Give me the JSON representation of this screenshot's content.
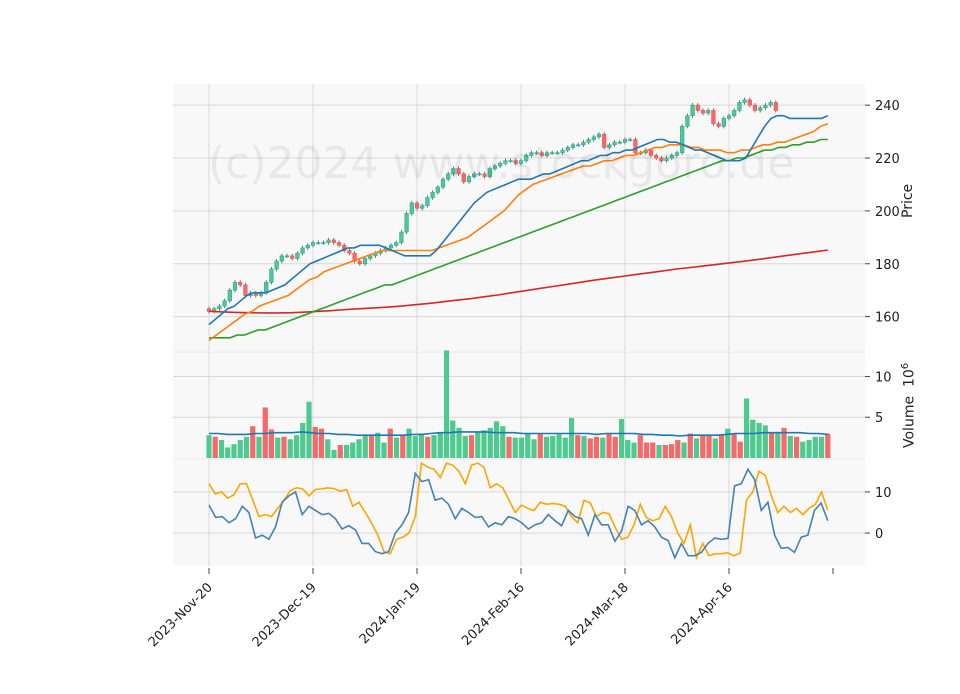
{
  "watermark": "(c)2024 www.stockgoro.de",
  "labels": {
    "price_axis": "Price",
    "volume_axis": "Volume",
    "volume_exp_base": "10",
    "volume_exp": "6"
  },
  "colors": {
    "up": "#26a69a",
    "up_fill": "#4ec98f",
    "down": "#ef5350",
    "down_fill": "#f46a6a",
    "ma_short": "#1f77b4",
    "ma_mid": "#ff7f0e",
    "ma_long": "#2ca02c",
    "ma_200": "#d62728",
    "vol_ma": "#1f77b4",
    "osc_a": "#ffa500",
    "osc_b": "#4682b4",
    "panel_bg": "#f8f8f8",
    "grid": "#d8d8d8"
  },
  "chart_data": [
    {
      "type": "candlestick",
      "panel": "price",
      "ylabel": "Price",
      "ylim": [
        147,
        248
      ],
      "yticks": [
        160,
        180,
        200,
        220,
        240
      ],
      "x_tick_labels": [
        "2023-Nov-20",
        "2023-Dec-19",
        "2024-Jan-19",
        "2024-Feb-16",
        "2024-Mar-18",
        "2024-Apr-16"
      ],
      "x_tick_index": [
        0,
        20,
        40,
        60,
        80,
        100
      ],
      "closes": [
        163,
        162,
        163,
        164,
        166,
        170,
        173,
        172,
        168,
        169,
        168,
        169,
        173,
        178,
        181,
        183,
        183,
        182,
        184,
        186,
        187,
        188,
        188,
        188,
        189,
        188,
        187,
        185,
        184,
        181,
        180,
        182,
        183,
        184,
        185,
        186,
        187,
        188,
        192,
        199,
        203,
        201,
        202,
        205,
        207,
        209,
        212,
        214,
        216,
        214,
        211,
        213,
        214,
        214,
        213,
        216,
        217,
        218,
        219,
        219,
        218,
        219,
        221,
        222,
        222,
        221,
        222,
        222,
        222,
        223,
        224,
        225,
        225,
        226,
        227,
        228,
        229,
        224,
        225,
        226,
        226,
        227,
        227,
        222,
        222,
        223,
        221,
        220,
        219,
        220,
        221,
        222,
        232,
        236,
        240,
        238,
        237,
        238,
        233,
        232,
        235,
        236,
        238,
        241,
        242,
        240,
        238,
        239,
        240,
        241,
        238
      ],
      "ma_short": [
        157,
        159,
        161,
        163,
        164,
        166,
        168,
        169,
        169,
        169,
        170,
        171,
        172,
        174,
        176,
        178,
        180,
        181,
        182,
        183,
        184,
        185,
        186,
        186,
        187,
        187,
        187,
        187,
        186,
        185,
        184,
        183,
        183,
        183,
        183,
        183,
        185,
        188,
        191,
        194,
        197,
        200,
        203,
        205,
        207,
        208,
        209,
        210,
        211,
        212,
        212,
        212,
        213,
        214,
        214,
        215,
        216,
        217,
        218,
        219,
        219,
        220,
        221,
        221,
        222,
        222,
        223,
        223,
        224,
        225,
        226,
        227,
        227,
        226,
        226,
        225,
        224,
        223,
        223,
        222,
        221,
        220,
        219,
        219,
        219,
        220,
        224,
        228,
        232,
        235,
        236,
        236,
        235,
        235,
        235,
        235,
        235,
        235,
        236
      ],
      "ma_mid": [
        151,
        153,
        155,
        157,
        159,
        161,
        162,
        164,
        165,
        166,
        167,
        168,
        170,
        172,
        174,
        175,
        177,
        178,
        179,
        180,
        181,
        182,
        183,
        184,
        185,
        185,
        185,
        185,
        185,
        185,
        185,
        185,
        186,
        187,
        188,
        189,
        190,
        192,
        194,
        196,
        198,
        200,
        203,
        206,
        208,
        210,
        211,
        212,
        213,
        214,
        215,
        216,
        217,
        217,
        218,
        219,
        219,
        220,
        221,
        221,
        222,
        223,
        224,
        224,
        225,
        225,
        225,
        224,
        224,
        223,
        223,
        223,
        222,
        222,
        223,
        223,
        224,
        225,
        225,
        226,
        226,
        227,
        228,
        229,
        230,
        232,
        233
      ],
      "ma_long": [
        152,
        152,
        152,
        152,
        153,
        153,
        154,
        155,
        155,
        156,
        157,
        158,
        159,
        160,
        161,
        162,
        163,
        164,
        165,
        166,
        167,
        168,
        169,
        170,
        171,
        172,
        172,
        173,
        174,
        175,
        176,
        177,
        178,
        179,
        180,
        181,
        182,
        183,
        184,
        185,
        186,
        187,
        188,
        189,
        190,
        191,
        192,
        193,
        194,
        195,
        196,
        197,
        198,
        199,
        200,
        201,
        202,
        203,
        204,
        205,
        206,
        207,
        208,
        209,
        210,
        211,
        212,
        213,
        214,
        215,
        216,
        217,
        218,
        219,
        219,
        220,
        220,
        221,
        222,
        223,
        223,
        224,
        224,
        225,
        225,
        226,
        226,
        227,
        227
      ],
      "ma_200": [
        162,
        161.8,
        161.6,
        161.5,
        161.4,
        161.4,
        161.5,
        161.7,
        162,
        162.3,
        162.7,
        163,
        163.3,
        163.6,
        164,
        164.5,
        165,
        165.6,
        166.2,
        166.8,
        167.5,
        168.2,
        169,
        169.8,
        170.6,
        171.4,
        172.2,
        173,
        173.8,
        174.5,
        175.2,
        175.9,
        176.6,
        177.3,
        178,
        178.6,
        179.2,
        179.8,
        180.4,
        181,
        181.7,
        182.4,
        183.1,
        183.8,
        184.5,
        185.2
      ]
    },
    {
      "type": "bar",
      "panel": "volume",
      "ylabel": "Volume 10^6",
      "ylim": [
        0,
        13
      ],
      "yticks": [
        5,
        10
      ],
      "values": [
        2.8,
        2.6,
        2.2,
        1.3,
        1.7,
        2.2,
        2.6,
        3.9,
        2.6,
        6.2,
        3.5,
        2.5,
        2.6,
        2.3,
        2.8,
        4.3,
        6.9,
        3.8,
        3.6,
        2.3,
        1.0,
        1.6,
        1.6,
        1.9,
        2.3,
        2.7,
        2.7,
        3.1,
        1.9,
        3.6,
        2.5,
        2.8,
        3.6,
        2.7,
        3.0,
        2.6,
        2.8,
        3.1,
        13.2,
        4.6,
        3.7,
        2.7,
        2.8,
        3.2,
        3.4,
        3.7,
        4.5,
        3.9,
        2.6,
        2.5,
        2.5,
        3.0,
        2.3,
        3.0,
        2.6,
        2.7,
        2.9,
        2.5,
        4.9,
        2.8,
        2.7,
        2.4,
        2.6,
        2.5,
        3.0,
        2.6,
        4.8,
        2.2,
        1.9,
        2.8,
        1.9,
        1.9,
        1.6,
        1.6,
        1.7,
        2.2,
        1.9,
        3.0,
        2.4,
        2.7,
        2.8,
        2.4,
        2.9,
        3.6,
        3.0,
        2.0,
        7.3,
        4.7,
        4.3,
        4.0,
        3.0,
        3.2,
        3.7,
        2.7,
        2.6,
        2.0,
        2.2,
        2.6,
        2.6,
        3.0
      ],
      "up": [
        1,
        0,
        1,
        1,
        1,
        1,
        1,
        0,
        1,
        0,
        0,
        1,
        0,
        1,
        1,
        1,
        1,
        0,
        0,
        1,
        1,
        0,
        1,
        1,
        1,
        1,
        0,
        1,
        1,
        0,
        1,
        0,
        1,
        1,
        1,
        0,
        1,
        1,
        1,
        1,
        1,
        1,
        0,
        1,
        1,
        1,
        1,
        1,
        0,
        1,
        1,
        1,
        1,
        0,
        1,
        1,
        1,
        1,
        1,
        0,
        1,
        0,
        0,
        1,
        0,
        0,
        1,
        1,
        1,
        0,
        0,
        0,
        1,
        0,
        0,
        0,
        1,
        0,
        1,
        0,
        0,
        1,
        0,
        1,
        0,
        0,
        1,
        1,
        1,
        1,
        0,
        1,
        0,
        1,
        0,
        1,
        1,
        1,
        1,
        0
      ],
      "ma": [
        3.0,
        3.0,
        2.9,
        2.9,
        2.9,
        3.0,
        3.0,
        3.1,
        3.1,
        3.1,
        3.2,
        3.1,
        3.0,
        3.0,
        2.9,
        2.9,
        2.8,
        2.8,
        2.8,
        2.8,
        2.8,
        2.8,
        2.9,
        2.9,
        3.0,
        3.1,
        3.1,
        3.2,
        3.2,
        3.2,
        3.2,
        3.1,
        3.1,
        3.1,
        3.0,
        3.0,
        3.0,
        3.0,
        3.0,
        3.0,
        3.0,
        3.0,
        2.9,
        3.0,
        3.0,
        3.0,
        3.0,
        2.9,
        2.9,
        2.8,
        2.8,
        2.7,
        2.8,
        2.8,
        2.8,
        2.8,
        2.9,
        3.0,
        3.0,
        3.0,
        3.1,
        3.1,
        3.1,
        3.1,
        3.1,
        3.0,
        3.0,
        2.9
      ]
    },
    {
      "type": "line",
      "panel": "oscillator",
      "ylim": [
        -8,
        18
      ],
      "yticks": [
        0,
        10
      ],
      "series": [
        {
          "values": [
            12,
            9.5,
            10,
            8.5,
            9.3,
            12,
            12,
            8,
            4,
            4.5,
            4,
            6,
            8,
            10.3,
            11,
            10.7,
            9,
            10.6,
            10.7,
            11,
            10.8,
            10.2,
            10.6,
            6.5,
            7.5,
            5,
            2.5,
            -0.5,
            -4.5,
            -5,
            -1.5,
            -1,
            0,
            4,
            17,
            16,
            15.5,
            13.5,
            17,
            16.5,
            15,
            12,
            16.5,
            17,
            16,
            11,
            12,
            11,
            8,
            5,
            6.8,
            6,
            5.5,
            7.5,
            7,
            7.2,
            7,
            6.5,
            4,
            2.5,
            8,
            7.3,
            4,
            5,
            4.7,
            1.3,
            -1.5,
            -1,
            2,
            7,
            3.7,
            3,
            3.5,
            6.5,
            4,
            0,
            -2.5,
            2,
            -6,
            -2.5,
            -5.5,
            -5,
            -5,
            -4.8,
            -5.5,
            -4.8,
            8,
            10,
            15,
            14,
            9,
            5,
            6.5,
            5,
            6,
            4.5,
            6,
            7,
            10,
            5.5
          ]
        },
        {
          "values": [
            6.8,
            3.8,
            4,
            2.5,
            3.5,
            6.5,
            5,
            -1.2,
            -0.5,
            -1.5,
            1.5,
            7.5,
            9,
            10,
            4.5,
            6.5,
            5.5,
            4.5,
            4.8,
            3.5,
            1,
            1.8,
            0.8,
            -2.5,
            -2.5,
            -4.5,
            -5,
            -4.5,
            0,
            2,
            5,
            14.5,
            12.5,
            13,
            8,
            8.5,
            7,
            3.5,
            6,
            5,
            3.8,
            4,
            1.5,
            2.5,
            2,
            4,
            3.5,
            2.5,
            1,
            2,
            2.5,
            4.5,
            3,
            1.8,
            5.5,
            4,
            3.5,
            -0.5,
            4.5,
            2,
            2,
            -2,
            0.5,
            6.5,
            5.5,
            2,
            3,
            1.5,
            -1,
            -1.8,
            -6,
            -2.5,
            -5.5,
            -5.5,
            -4.7,
            -2.5,
            -1.2,
            -1.5,
            -1.3,
            11.5,
            12,
            15.5,
            13,
            5.5,
            7.5,
            -0.5,
            -3.7,
            -3.5,
            -4.7,
            -1,
            -0.5,
            5.5,
            7.3,
            3
          ]
        }
      ]
    }
  ]
}
